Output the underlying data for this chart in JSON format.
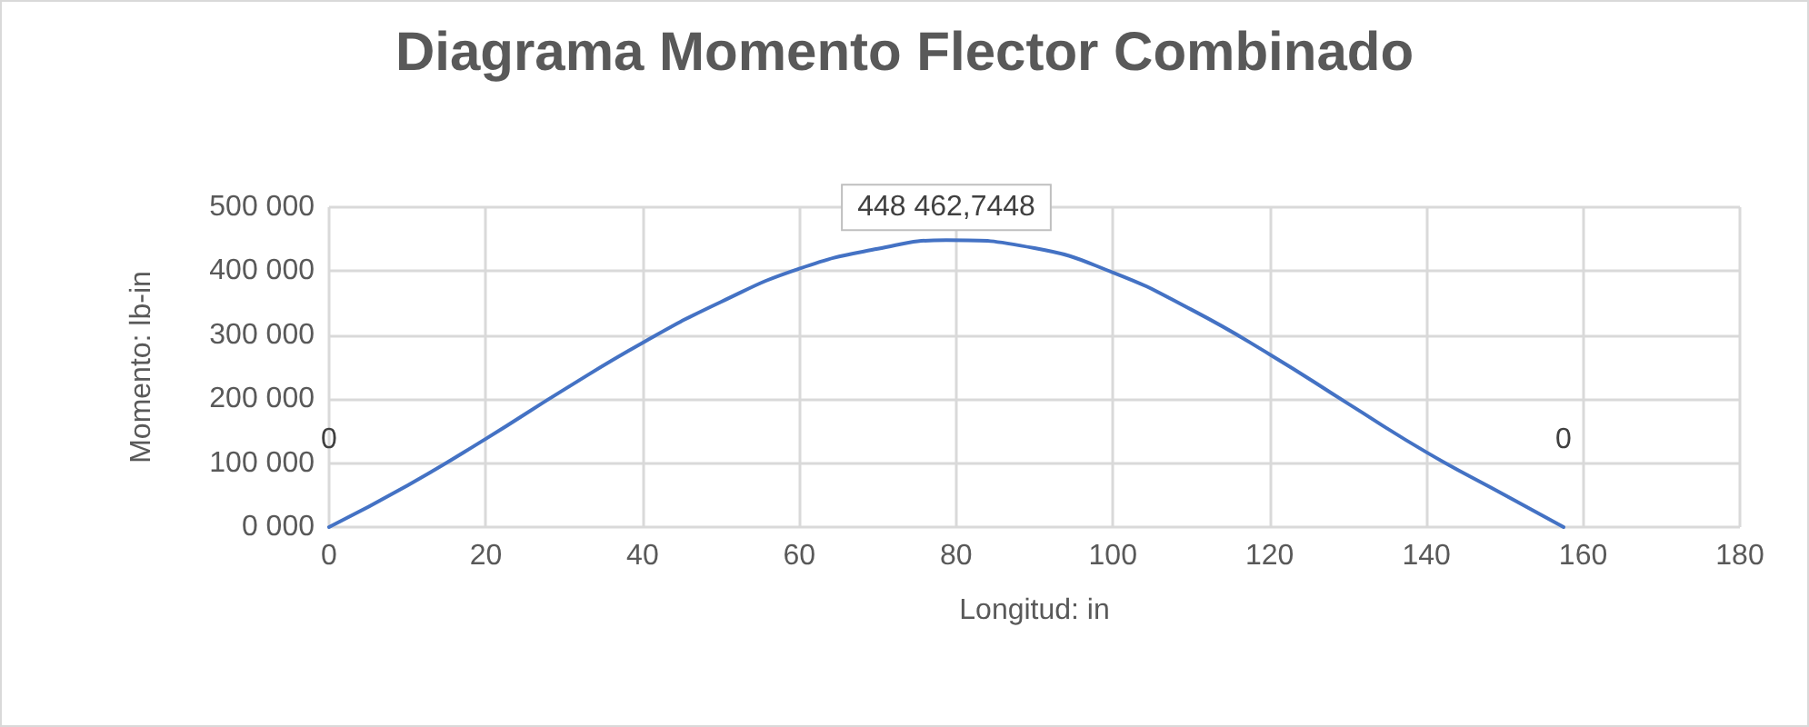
{
  "chart_data": {
    "type": "line",
    "title": "Diagrama Momento Flector Combinado",
    "xlabel": "Longitud: in",
    "ylabel": "Momento: lb-in",
    "x": [
      0,
      10,
      20,
      30,
      40,
      50,
      60,
      70,
      78.75,
      90,
      100,
      110,
      120,
      130,
      140,
      150,
      157.5
    ],
    "series": [
      {
        "color": "#4472c4",
        "values": [
          0,
          65000,
          138000,
          215000,
          288000,
          352000,
          404000,
          435000,
          448462.7448,
          436000,
          398000,
          340000,
          270000,
          193000,
          117000,
          50000,
          0
        ],
        "value_labels": [
          "0",
          null,
          null,
          null,
          null,
          null,
          null,
          null,
          "448 462,7448",
          null,
          null,
          null,
          null,
          null,
          null,
          null,
          "0"
        ]
      }
    ],
    "xlim": [
      0,
      180
    ],
    "xticks": [
      0,
      20,
      40,
      60,
      80,
      100,
      120,
      140,
      160,
      180
    ],
    "ylim": [
      0,
      500000
    ],
    "yticks": [
      {
        "value": 0,
        "label": "0 000"
      },
      {
        "value": 100000,
        "label": "100 000"
      },
      {
        "value": 200000,
        "label": "200 000"
      },
      {
        "value": 300000,
        "label": "300 000"
      },
      {
        "value": 400000,
        "label": "400 000"
      },
      {
        "value": 500000,
        "label": "500 000"
      }
    ],
    "grid": true,
    "marker": "none",
    "line_style": "solid"
  }
}
